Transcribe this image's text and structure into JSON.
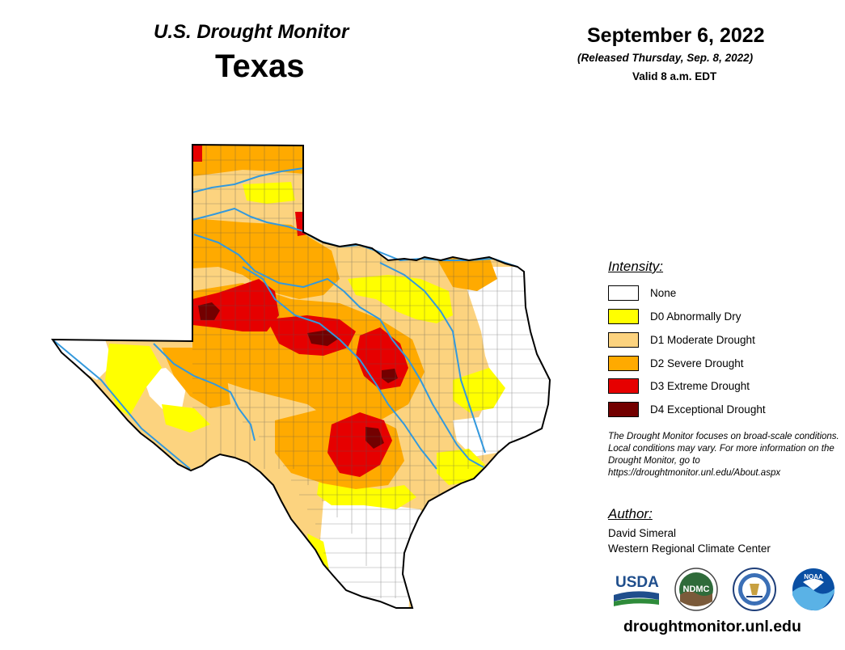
{
  "header": {
    "monitor_title": "U.S. Drought Monitor",
    "state": "Texas",
    "date": "September 6, 2022",
    "release_note": "(Released Thursday, Sep. 8, 2022)",
    "valid_time": "Valid 8 a.m. EDT"
  },
  "legend": {
    "title": "Intensity:",
    "items": [
      {
        "label": "None",
        "color": "#ffffff"
      },
      {
        "label": "D0 Abnormally Dry",
        "color": "#ffff00"
      },
      {
        "label": "D1 Moderate Drought",
        "color": "#fcd37f"
      },
      {
        "label": "D2 Severe Drought",
        "color": "#ffaa00"
      },
      {
        "label": "D3 Extreme Drought",
        "color": "#e60000"
      },
      {
        "label": "D4 Exceptional Drought",
        "color": "#730000"
      }
    ]
  },
  "disclaimer": "The Drought Monitor focuses on broad-scale conditions. Local conditions may vary. For more information on the Drought Monitor, go to https://droughtmonitor.unl.edu/About.aspx",
  "author": {
    "title": "Author:",
    "name": "David Simeral",
    "org": "Western Regional Climate Center"
  },
  "logos": {
    "usda": "USDA",
    "ndmc": "NDMC",
    "noaa": "NOAA"
  },
  "website": "droughtmonitor.unl.edu",
  "colors": {
    "river": "#3399dd",
    "county_lines": "#555555",
    "state_outline": "#000000"
  }
}
